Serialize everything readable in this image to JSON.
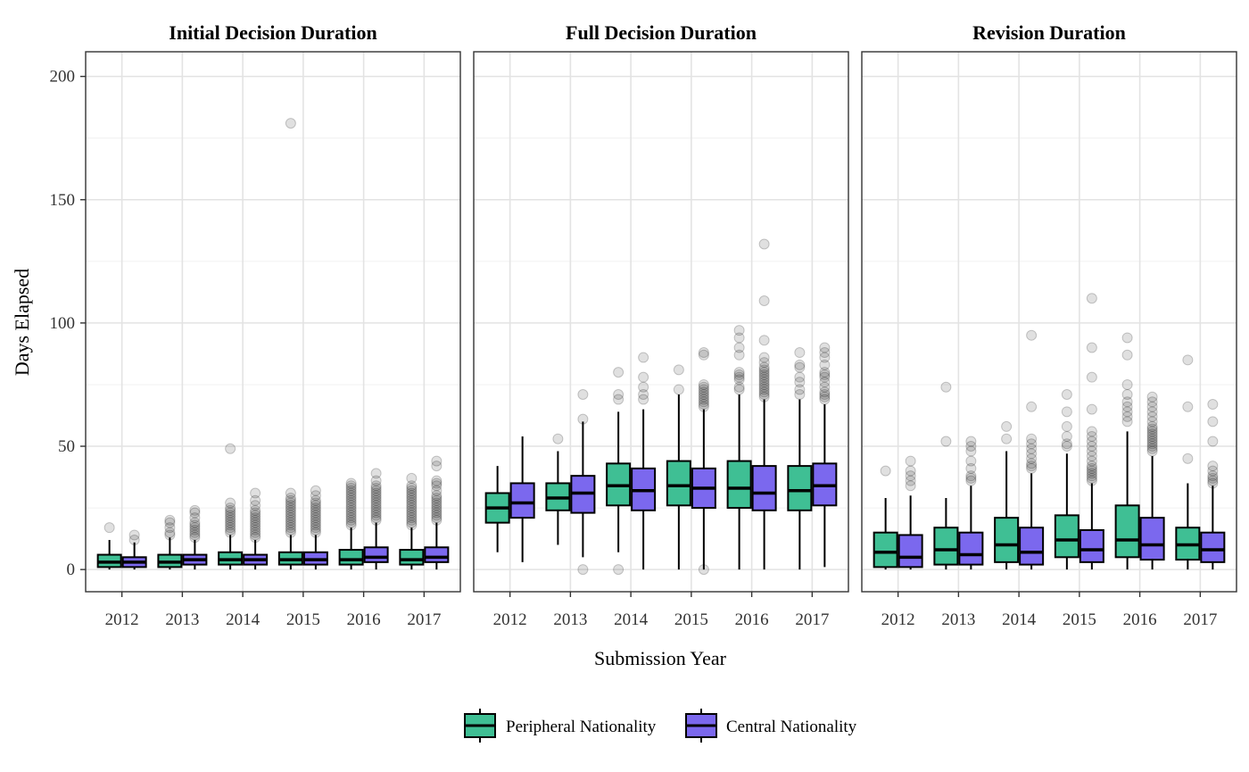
{
  "chart_data": {
    "type": "boxplot",
    "xlabel": "Submission Year",
    "ylabel": "Days Elapsed",
    "ylim": [
      -9,
      210
    ],
    "y_ticks": [
      0,
      50,
      100,
      150,
      200
    ],
    "categories": [
      "2012",
      "2013",
      "2014",
      "2015",
      "2016",
      "2017"
    ],
    "grid": true,
    "legend_position": "bottom",
    "series_names": [
      "Peripheral Nationality",
      "Central Nationality"
    ],
    "colors": {
      "Peripheral Nationality": "#3fbf94",
      "Central Nationality": "#7b68ee"
    },
    "facets": [
      {
        "title": "Initial Decision Duration",
        "series": [
          {
            "name": "Peripheral Nationality",
            "boxes": [
              {
                "q1": 1,
                "median": 3,
                "q3": 6,
                "lo": 0,
                "hi": 12,
                "outliers": [
                  17
                ]
              },
              {
                "q1": 1,
                "median": 3,
                "q3": 6,
                "lo": 0,
                "hi": 13,
                "outliers": [
                  14,
                  15,
                  17,
                  19,
                  20
                ]
              },
              {
                "q1": 2,
                "median": 4,
                "q3": 7,
                "lo": 0,
                "hi": 14,
                "outliers": [
                  15,
                  16,
                  17,
                  18,
                  19,
                  20,
                  21,
                  22,
                  23,
                  24,
                  25,
                  27,
                  49
                ]
              },
              {
                "q1": 2,
                "median": 4,
                "q3": 7,
                "lo": 0,
                "hi": 14,
                "outliers": [
                  15,
                  16,
                  17,
                  18,
                  19,
                  20,
                  21,
                  22,
                  23,
                  24,
                  25,
                  26,
                  27,
                  28,
                  29,
                  31,
                  181
                ]
              },
              {
                "q1": 2,
                "median": 4,
                "q3": 8,
                "lo": 0,
                "hi": 17,
                "outliers": [
                  18,
                  19,
                  20,
                  21,
                  22,
                  23,
                  24,
                  25,
                  26,
                  27,
                  28,
                  29,
                  30,
                  31,
                  32,
                  33,
                  34,
                  35
                ]
              },
              {
                "q1": 2,
                "median": 4,
                "q3": 8,
                "lo": 0,
                "hi": 17,
                "outliers": [
                  18,
                  19,
                  20,
                  21,
                  22,
                  23,
                  24,
                  25,
                  26,
                  27,
                  28,
                  29,
                  30,
                  31,
                  32,
                  33,
                  34,
                  37
                ]
              }
            ]
          },
          {
            "name": "Central Nationality",
            "boxes": [
              {
                "q1": 1,
                "median": 3,
                "q3": 5,
                "lo": 0,
                "hi": 11,
                "outliers": [
                  12,
                  14
                ]
              },
              {
                "q1": 2,
                "median": 4,
                "q3": 6,
                "lo": 0,
                "hi": 12,
                "outliers": [
                  13,
                  14,
                  15,
                  16,
                  17,
                  18,
                  19,
                  21,
                  23,
                  24
                ]
              },
              {
                "q1": 2,
                "median": 4,
                "q3": 6,
                "lo": 0,
                "hi": 12,
                "outliers": [
                  13,
                  14,
                  15,
                  16,
                  17,
                  18,
                  19,
                  20,
                  21,
                  22,
                  23,
                  24,
                  26,
                  28,
                  31
                ]
              },
              {
                "q1": 2,
                "median": 4,
                "q3": 7,
                "lo": 0,
                "hi": 14,
                "outliers": [
                  15,
                  16,
                  17,
                  18,
                  19,
                  20,
                  21,
                  22,
                  23,
                  24,
                  25,
                  26,
                  27,
                  28,
                  30,
                  32
                ]
              },
              {
                "q1": 3,
                "median": 5,
                "q3": 9,
                "lo": 0,
                "hi": 19,
                "outliers": [
                  20,
                  21,
                  22,
                  23,
                  24,
                  25,
                  26,
                  27,
                  28,
                  29,
                  30,
                  31,
                  32,
                  33,
                  34,
                  36,
                  39
                ]
              },
              {
                "q1": 3,
                "median": 5,
                "q3": 9,
                "lo": 0,
                "hi": 19,
                "outliers": [
                  20,
                  21,
                  22,
                  23,
                  24,
                  25,
                  26,
                  27,
                  28,
                  29,
                  30,
                  32,
                  34,
                  35,
                  36,
                  42,
                  44
                ]
              }
            ]
          }
        ]
      },
      {
        "title": "Full Decision Duration",
        "series": [
          {
            "name": "Peripheral Nationality",
            "boxes": [
              {
                "q1": 19,
                "median": 25,
                "q3": 31,
                "lo": 7,
                "hi": 42,
                "outliers": []
              },
              {
                "q1": 24,
                "median": 29,
                "q3": 35,
                "lo": 10,
                "hi": 48,
                "outliers": [
                  53
                ]
              },
              {
                "q1": 26,
                "median": 34,
                "q3": 43,
                "lo": 7,
                "hi": 64,
                "outliers": [
                  0,
                  69,
                  71,
                  80
                ]
              },
              {
                "q1": 26,
                "median": 34,
                "q3": 44,
                "lo": 0,
                "hi": 71,
                "outliers": [
                  73,
                  81
                ]
              },
              {
                "q1": 25,
                "median": 33,
                "q3": 44,
                "lo": 0,
                "hi": 71,
                "outliers": [
                  73,
                  74,
                  77,
                  78,
                  79,
                  80,
                  87,
                  90,
                  94,
                  97
                ]
              },
              {
                "q1": 24,
                "median": 32,
                "q3": 42,
                "lo": 0,
                "hi": 69,
                "outliers": [
                  71,
                  73,
                  76,
                  78,
                  82,
                  83,
                  88
                ]
              }
            ]
          },
          {
            "name": "Central Nationality",
            "boxes": [
              {
                "q1": 21,
                "median": 27,
                "q3": 35,
                "lo": 3,
                "hi": 54,
                "outliers": []
              },
              {
                "q1": 23,
                "median": 31,
                "q3": 38,
                "lo": 5,
                "hi": 60,
                "outliers": [
                  0,
                  61,
                  71
                ]
              },
              {
                "q1": 24,
                "median": 32,
                "q3": 41,
                "lo": 0,
                "hi": 65,
                "outliers": [
                  69,
                  71,
                  74,
                  78,
                  86
                ]
              },
              {
                "q1": 25,
                "median": 33,
                "q3": 41,
                "lo": 0,
                "hi": 65,
                "outliers": [
                  0,
                  66,
                  67,
                  68,
                  69,
                  70,
                  71,
                  72,
                  73,
                  74,
                  75,
                  87,
                  88
                ]
              },
              {
                "q1": 24,
                "median": 31,
                "q3": 42,
                "lo": 0,
                "hi": 69,
                "outliers": [
                  70,
                  71,
                  72,
                  73,
                  74,
                  75,
                  76,
                  77,
                  78,
                  79,
                  80,
                  81,
                  82,
                  84,
                  86,
                  93,
                  109,
                  132
                ]
              },
              {
                "q1": 26,
                "median": 34,
                "q3": 43,
                "lo": 1,
                "hi": 67,
                "outliers": [
                  69,
                  70,
                  71,
                  72,
                  74,
                  76,
                  78,
                  79,
                  80,
                  83,
                  86,
                  88,
                  90
                ]
              }
            ]
          }
        ]
      },
      {
        "title": "Revision Duration",
        "series": [
          {
            "name": "Peripheral Nationality",
            "boxes": [
              {
                "q1": 1,
                "median": 7,
                "q3": 15,
                "lo": 0,
                "hi": 29,
                "outliers": [
                  40
                ]
              },
              {
                "q1": 2,
                "median": 8,
                "q3": 17,
                "lo": 0,
                "hi": 29,
                "outliers": [
                  52,
                  74
                ]
              },
              {
                "q1": 3,
                "median": 10,
                "q3": 21,
                "lo": 0,
                "hi": 48,
                "outliers": [
                  53,
                  58
                ]
              },
              {
                "q1": 5,
                "median": 12,
                "q3": 22,
                "lo": 0,
                "hi": 47,
                "outliers": [
                  50,
                  51,
                  54,
                  58,
                  64,
                  71
                ]
              },
              {
                "q1": 5,
                "median": 12,
                "q3": 26,
                "lo": 0,
                "hi": 56,
                "outliers": [
                  60,
                  62,
                  64,
                  66,
                  68,
                  71,
                  75,
                  87,
                  94
                ]
              },
              {
                "q1": 4,
                "median": 10,
                "q3": 17,
                "lo": 0,
                "hi": 35,
                "outliers": [
                  45,
                  66,
                  85
                ]
              }
            ]
          },
          {
            "name": "Central Nationality",
            "boxes": [
              {
                "q1": 1,
                "median": 5,
                "q3": 14,
                "lo": 0,
                "hi": 30,
                "outliers": [
                  34,
                  36,
                  38,
                  40,
                  44
                ]
              },
              {
                "q1": 2,
                "median": 6,
                "q3": 15,
                "lo": 0,
                "hi": 34,
                "outliers": [
                  36,
                  37,
                  38,
                  41,
                  44,
                  48,
                  50,
                  52
                ]
              },
              {
                "q1": 2,
                "median": 7,
                "q3": 17,
                "lo": 0,
                "hi": 39,
                "outliers": [
                  41,
                  42,
                  43,
                  45,
                  47,
                  49,
                  51,
                  53,
                  66,
                  95
                ]
              },
              {
                "q1": 3,
                "median": 8,
                "q3": 16,
                "lo": 0,
                "hi": 35,
                "outliers": [
                  36,
                  37,
                  38,
                  39,
                  40,
                  41,
                  42,
                  44,
                  46,
                  48,
                  50,
                  52,
                  54,
                  56,
                  65,
                  78,
                  90,
                  110
                ]
              },
              {
                "q1": 4,
                "median": 10,
                "q3": 21,
                "lo": 0,
                "hi": 46,
                "outliers": [
                  48,
                  49,
                  50,
                  51,
                  52,
                  53,
                  54,
                  55,
                  56,
                  57,
                  58,
                  60,
                  62,
                  64,
                  66,
                  68,
                  70
                ]
              },
              {
                "q1": 3,
                "median": 8,
                "q3": 15,
                "lo": 0,
                "hi": 34,
                "outliers": [
                  35,
                  36,
                  37,
                  38,
                  40,
                  42,
                  52,
                  60,
                  67
                ]
              }
            ]
          }
        ]
      }
    ]
  }
}
